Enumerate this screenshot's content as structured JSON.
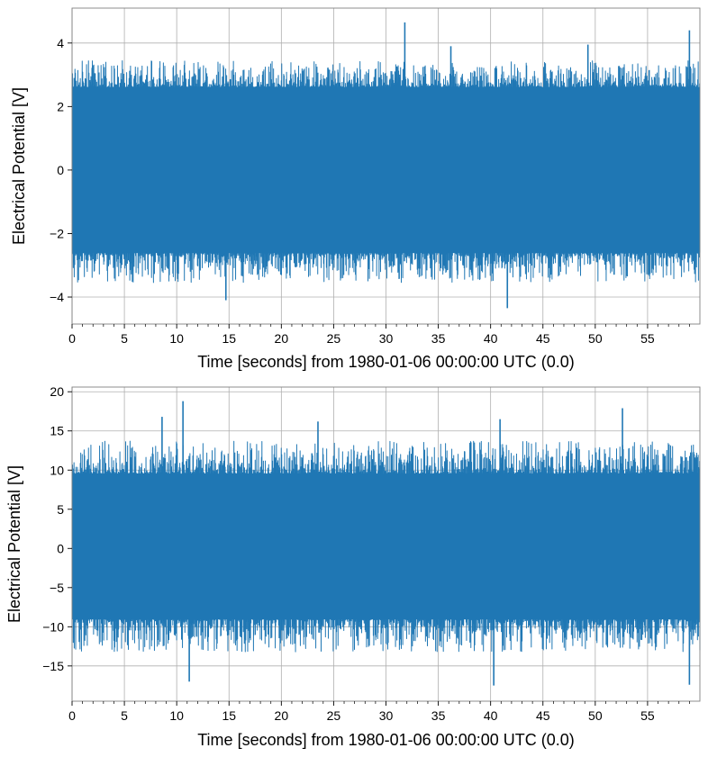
{
  "chart_data": [
    {
      "type": "line",
      "title": "",
      "xlabel": "Time [seconds] from 1980-01-06 00:00:00 UTC (0.0)",
      "ylabel": "Electrical Potential [V]",
      "xlim": [
        0,
        60
      ],
      "ylim": [
        -4.85,
        5.1
      ],
      "grid": true,
      "color": "#1f77b4",
      "x_ticks": [
        0,
        5,
        10,
        15,
        20,
        25,
        30,
        35,
        40,
        45,
        50,
        55
      ],
      "x_tick_labels": [
        "0",
        "5",
        "10",
        "15",
        "20",
        "25",
        "30",
        "35",
        "40",
        "45",
        "50",
        "55"
      ],
      "y_ticks": [
        -4,
        -2,
        0,
        2,
        4
      ],
      "y_tick_labels": [
        "−4",
        "−2",
        "0",
        "2",
        "4"
      ],
      "envelope": {
        "core_range": [
          -2.6,
          2.6
        ],
        "typical_peaks": [
          -3.5,
          3.4
        ],
        "max_value": 4.65,
        "max_at": 31.8,
        "min_value": -4.35,
        "min_at": 41.6
      },
      "spikes": [
        {
          "x": 14.7,
          "y": -4.1
        },
        {
          "x": 31.8,
          "y": 4.65
        },
        {
          "x": 36.2,
          "y": 3.9
        },
        {
          "x": 41.6,
          "y": -4.35
        },
        {
          "x": 49.3,
          "y": 3.95
        },
        {
          "x": 59.0,
          "y": 4.4
        }
      ]
    },
    {
      "type": "line",
      "title": "",
      "xlabel": "Time [seconds] from 1980-01-06 00:00:00 UTC (0.0)",
      "ylabel": "Electrical Potential [V]",
      "xlim": [
        0,
        60
      ],
      "ylim": [
        -19.5,
        20.6
      ],
      "grid": true,
      "color": "#1f77b4",
      "x_ticks": [
        0,
        5,
        10,
        15,
        20,
        25,
        30,
        35,
        40,
        45,
        50,
        55
      ],
      "x_tick_labels": [
        "0",
        "5",
        "10",
        "15",
        "20",
        "25",
        "30",
        "35",
        "40",
        "45",
        "50",
        "55"
      ],
      "y_ticks": [
        -15,
        -10,
        -5,
        0,
        5,
        10,
        15,
        20
      ],
      "y_tick_labels": [
        "−15",
        "−10",
        "−5",
        "0",
        "5",
        "10",
        "15",
        "20"
      ],
      "envelope": {
        "core_range": [
          -9.0,
          9.5
        ],
        "typical_peaks": [
          -13.0,
          13.5
        ],
        "max_value": 18.8,
        "max_at": 10.6,
        "min_value": -17.5,
        "min_at": 40.3
      },
      "spikes": [
        {
          "x": 8.6,
          "y": 16.8
        },
        {
          "x": 10.6,
          "y": 18.8
        },
        {
          "x": 11.2,
          "y": -17.0
        },
        {
          "x": 23.5,
          "y": 16.2
        },
        {
          "x": 40.3,
          "y": -17.5
        },
        {
          "x": 40.9,
          "y": 16.5
        },
        {
          "x": 52.6,
          "y": 17.9
        },
        {
          "x": 59.0,
          "y": -17.4
        }
      ]
    }
  ]
}
